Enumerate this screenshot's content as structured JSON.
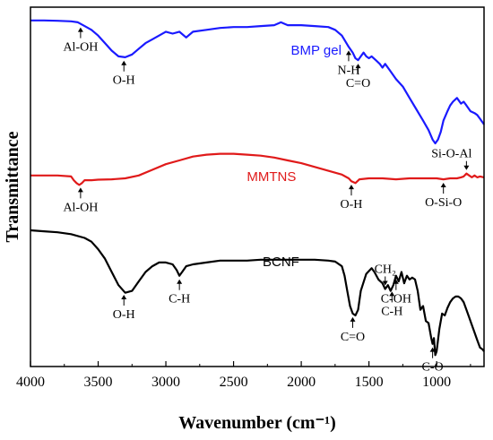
{
  "chart_data": {
    "type": "line",
    "xlabel": "Wavenumber (cm⁻¹)",
    "ylabel": "Transmittance",
    "xlim": [
      4000,
      650
    ],
    "x_ticks": [
      4000,
      3500,
      3000,
      2500,
      2000,
      1500,
      1000
    ],
    "x_reversed": true,
    "y_ticks_shown": false,
    "grid": false,
    "series": [
      {
        "name": "BMP gel",
        "color": "#1a1aff",
        "x": [
          4000,
          3900,
          3800,
          3700,
          3650,
          3600,
          3550,
          3500,
          3450,
          3400,
          3350,
          3300,
          3250,
          3200,
          3150,
          3100,
          3000,
          2950,
          2900,
          2850,
          2800,
          2700,
          2600,
          2500,
          2400,
          2300,
          2200,
          2150,
          2100,
          2000,
          1900,
          1800,
          1750,
          1700,
          1650,
          1620,
          1600,
          1580,
          1560,
          1540,
          1520,
          1500,
          1480,
          1450,
          1420,
          1400,
          1380,
          1350,
          1300,
          1250,
          1200,
          1150,
          1100,
          1060,
          1030,
          1010,
          990,
          970,
          950,
          920,
          900,
          880,
          850,
          820,
          800,
          780,
          750,
          720,
          700,
          680,
          650
        ],
        "values": [
          83,
          83,
          82.8,
          82.5,
          82,
          80,
          78,
          75,
          71,
          67,
          64,
          63.5,
          65,
          68,
          71,
          73,
          77,
          76,
          77,
          74,
          77,
          78,
          79,
          79.5,
          79.5,
          80,
          80.5,
          82,
          80.5,
          80.5,
          80,
          79.5,
          78,
          75,
          69,
          66,
          63,
          62,
          64,
          66,
          64,
          63,
          64,
          62,
          60,
          58,
          60,
          57,
          52,
          48,
          42,
          36,
          30,
          25,
          20,
          18,
          20,
          24,
          30,
          35,
          38,
          40,
          42,
          39,
          40,
          38,
          35,
          34,
          33,
          31,
          28
        ]
      },
      {
        "name": "MMTNS",
        "color": "#e01a1a",
        "x": [
          4000,
          3800,
          3700,
          3680,
          3660,
          3640,
          3620,
          3600,
          3550,
          3500,
          3400,
          3300,
          3200,
          3100,
          3000,
          2900,
          2800,
          2700,
          2600,
          2500,
          2400,
          2300,
          2200,
          2100,
          2000,
          1900,
          1800,
          1700,
          1650,
          1630,
          1600,
          1570,
          1500,
          1400,
          1300,
          1200,
          1100,
          1000,
          950,
          900,
          850,
          820,
          800,
          780,
          760,
          740,
          720,
          700,
          680,
          650
        ],
        "values": [
          1,
          1,
          0.5,
          -1.5,
          -3,
          -4,
          -3,
          -1.5,
          -1.5,
          -1.2,
          -1,
          -0.5,
          1,
          4,
          7,
          9,
          11,
          12,
          12.5,
          12.5,
          12,
          11.5,
          10.5,
          9,
          7.5,
          5.5,
          3.5,
          1.5,
          -0.5,
          -2,
          -3,
          -1,
          -0.5,
          -0.5,
          -1,
          -0.5,
          -0.5,
          -0.5,
          -1,
          -0.5,
          -0.5,
          0,
          0.5,
          2,
          1,
          0,
          1,
          0,
          0.5,
          0
        ]
      },
      {
        "name": "BCNF",
        "color": "#000000",
        "x": [
          4000,
          3900,
          3800,
          3700,
          3600,
          3550,
          3500,
          3450,
          3400,
          3350,
          3300,
          3250,
          3200,
          3150,
          3100,
          3050,
          3000,
          2950,
          2920,
          2900,
          2880,
          2850,
          2800,
          2700,
          2600,
          2500,
          2400,
          2300,
          2200,
          2100,
          2000,
          1900,
          1800,
          1750,
          1700,
          1680,
          1660,
          1640,
          1620,
          1600,
          1580,
          1560,
          1520,
          1480,
          1460,
          1430,
          1400,
          1380,
          1360,
          1340,
          1320,
          1300,
          1280,
          1260,
          1240,
          1220,
          1200,
          1180,
          1160,
          1140,
          1120,
          1100,
          1080,
          1060,
          1040,
          1030,
          1020,
          1010,
          1000,
          980,
          960,
          940,
          920,
          900,
          880,
          860,
          840,
          820,
          800,
          780,
          760,
          740,
          720,
          700,
          680,
          660,
          650
        ],
        "values": [
          -28,
          -28.5,
          -29,
          -30,
          -32,
          -34,
          -38,
          -43,
          -50,
          -57,
          -61,
          -60,
          -55,
          -50,
          -47,
          -45,
          -45,
          -46,
          -49,
          -52,
          -50,
          -47,
          -46,
          -45,
          -44,
          -44,
          -44,
          -43.5,
          -43.5,
          -43.5,
          -43.5,
          -43.5,
          -44,
          -44.5,
          -47,
          -52,
          -60,
          -68,
          -72,
          -73,
          -70,
          -60,
          -51,
          -48,
          -50,
          -54,
          -56,
          -59,
          -57,
          -60,
          -57,
          -52,
          -55,
          -50,
          -56,
          -52,
          -54,
          -53,
          -54,
          -60,
          -70,
          -68,
          -76,
          -77,
          -85,
          -88,
          -85,
          -94,
          -92,
          -80,
          -72,
          -73,
          -69,
          -66,
          -64,
          -63,
          -63,
          -64,
          -66,
          -70,
          -74,
          -78,
          -82,
          -86,
          -90,
          -91,
          -92
        ]
      }
    ],
    "series_labels": [
      {
        "text": "BMP gel",
        "color": "#1a1aff",
        "x": 1890,
        "y": 65
      },
      {
        "text": "MMTNS",
        "color": "#e01a1a",
        "x": 2220,
        "y": -2
      },
      {
        "text": "BCNF",
        "color": "#000000",
        "x": 2150,
        "y": -47
      }
    ],
    "annotations": [
      {
        "text": "Al-OH",
        "series": 0,
        "at": 3630,
        "dir": "down"
      },
      {
        "text": "O-H",
        "series": 0,
        "at": 3310,
        "dir": "down"
      },
      {
        "text": "N-H",
        "series": 0,
        "at": 1650,
        "dir": "down"
      },
      {
        "text": "C=O",
        "series": 0,
        "at": 1580,
        "dir": "down"
      },
      {
        "text": "Al-OH",
        "series": 1,
        "at": 3630,
        "dir": "down"
      },
      {
        "text": "O-H",
        "series": 1,
        "at": 1630,
        "dir": "down"
      },
      {
        "text": "O-Si-O",
        "series": 1,
        "at": 950,
        "dir": "down"
      },
      {
        "text": "Si-O-Al",
        "series": 1,
        "at": 780,
        "dir": "up"
      },
      {
        "text": "O-H",
        "series": 2,
        "at": 3310,
        "dir": "down"
      },
      {
        "text": "C-H",
        "series": 2,
        "at": 2900,
        "dir": "down"
      },
      {
        "text": "C=O",
        "series": 2,
        "at": 1620,
        "dir": "down"
      },
      {
        "text": "CH₂",
        "series": 2,
        "at": 1380,
        "dir": "up"
      },
      {
        "text": "C-H",
        "series": 2,
        "at": 1330,
        "dir": "down"
      },
      {
        "text": "C-OH",
        "series": 2,
        "at": 1300,
        "dir": "down"
      },
      {
        "text": "C-O",
        "series": 2,
        "at": 1030,
        "dir": "down"
      }
    ]
  }
}
